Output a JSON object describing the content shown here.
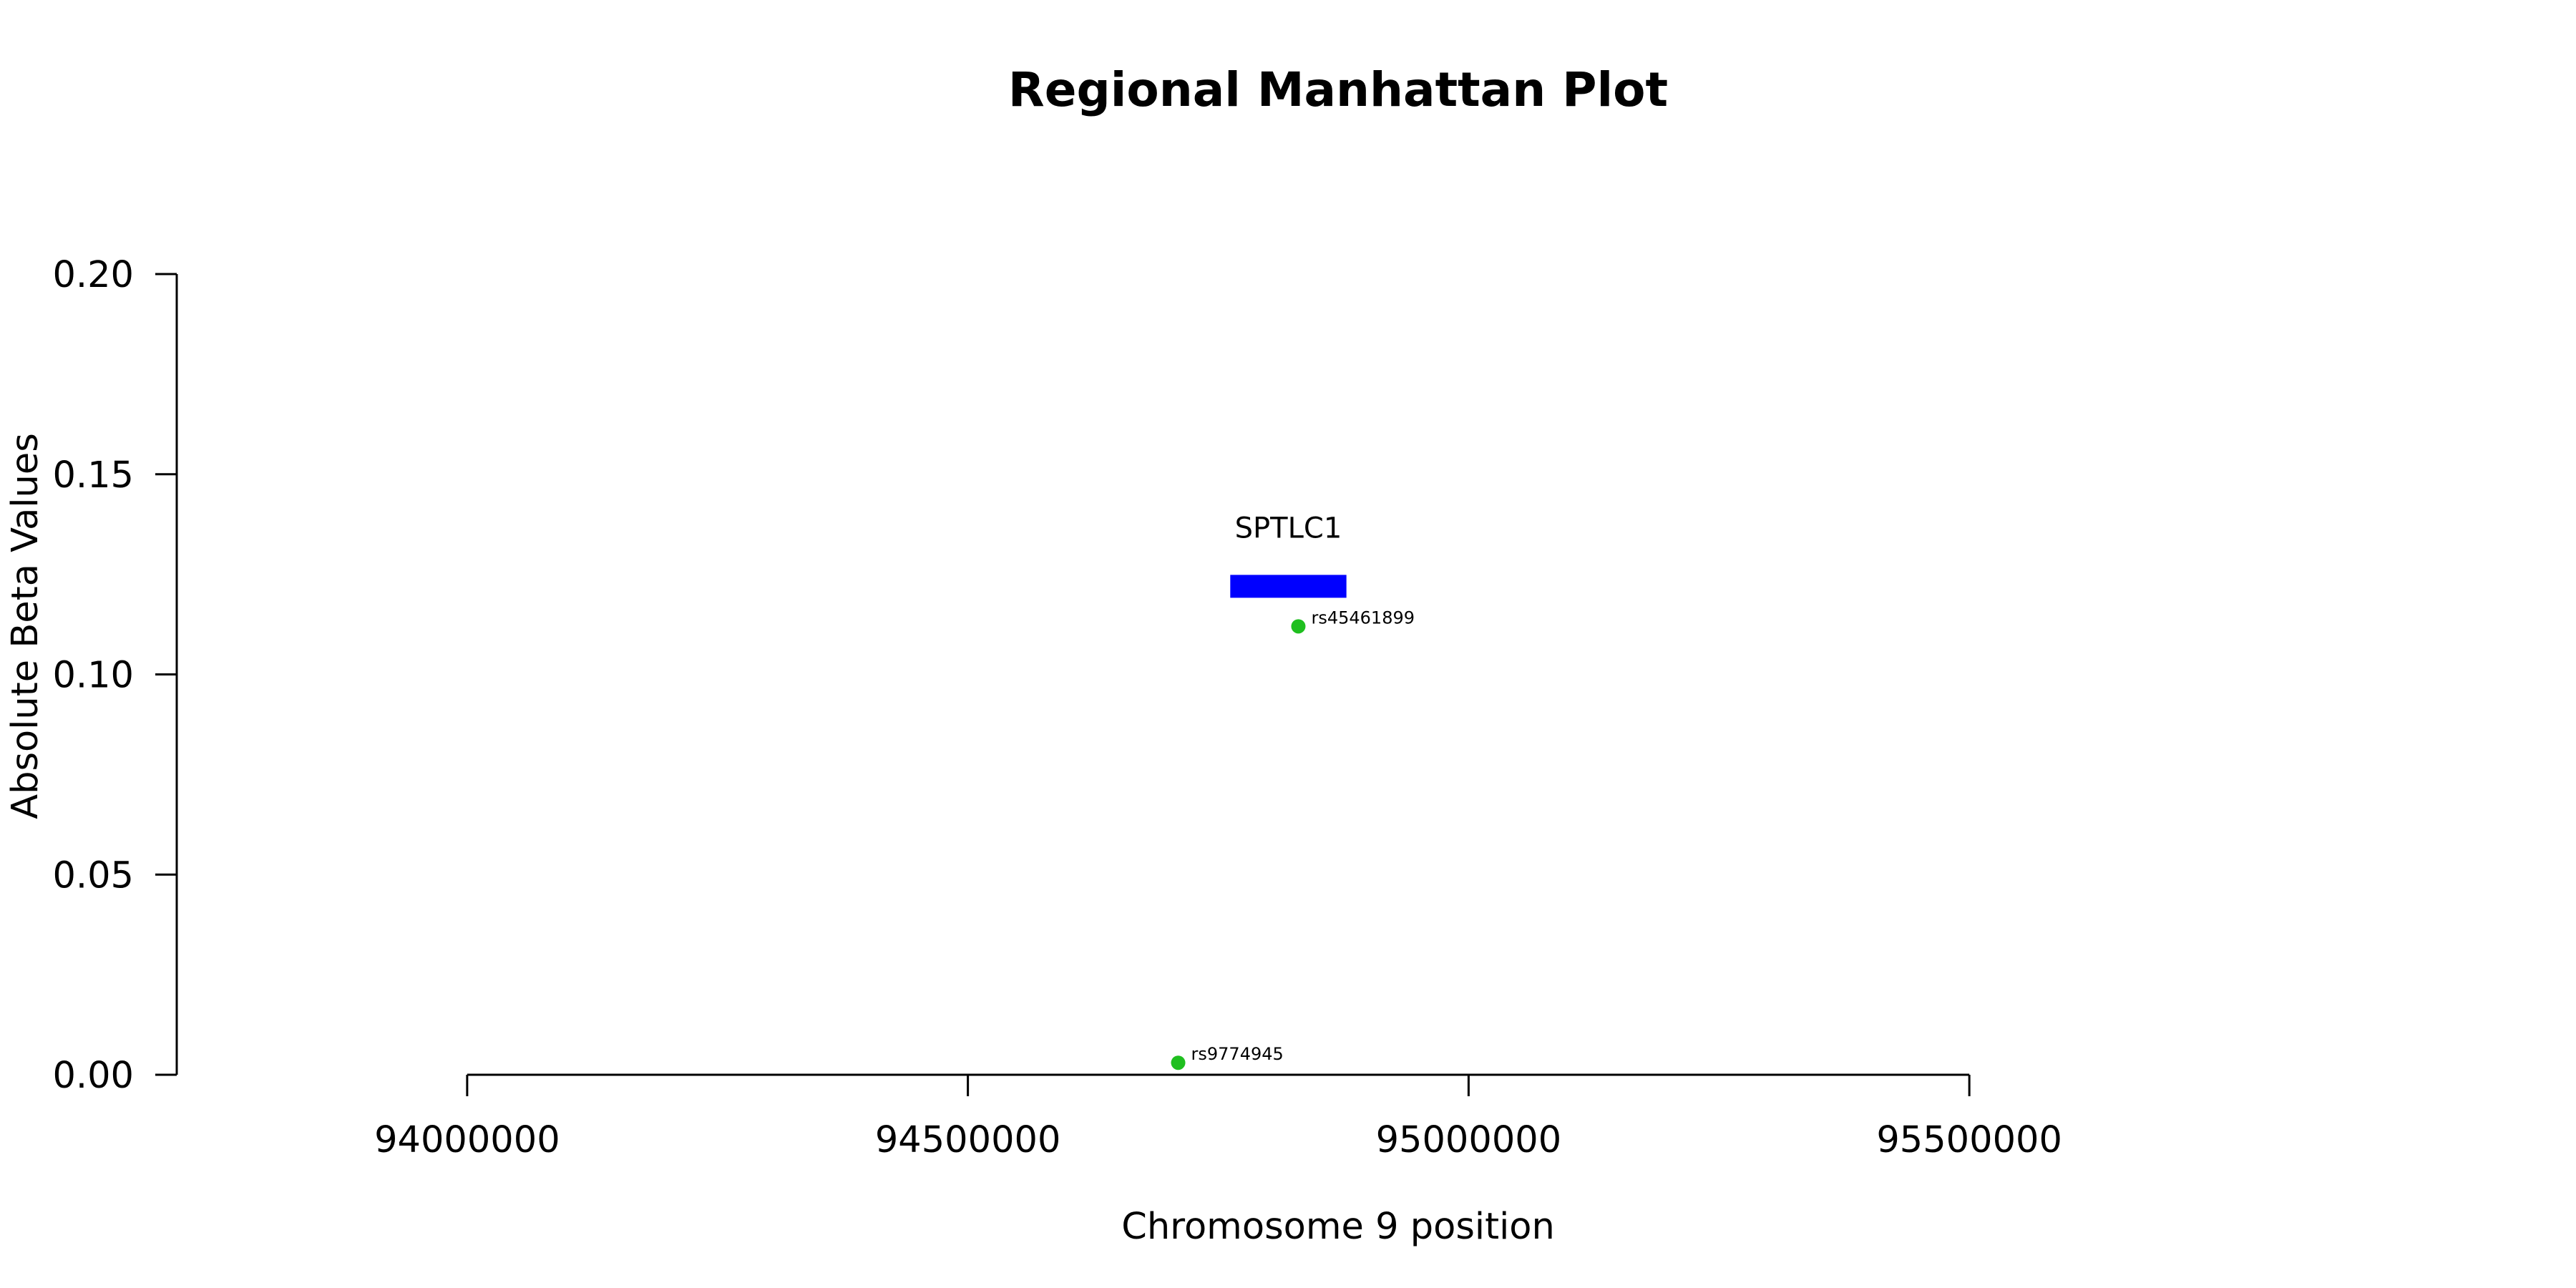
{
  "chart_data": {
    "type": "scatter",
    "title": "Regional Manhattan Plot",
    "xlabel": "Chromosome 9 position",
    "ylabel": "Absolute Beta Values",
    "xlim": [
      93710000,
      95830000
    ],
    "ylim": [
      0,
      0.2
    ],
    "x_ticks": [
      94000000,
      94500000,
      95000000,
      95500000
    ],
    "x_tick_labels": [
      "94000000",
      "94500000",
      "95000000",
      "95500000"
    ],
    "y_ticks": [
      0,
      0.05,
      0.1,
      0.15,
      0.2
    ],
    "y_tick_labels": [
      "0.00",
      "0.05",
      "0.10",
      "0.15",
      "0.20"
    ],
    "grid": false,
    "point_color": "#1fbf1f",
    "points": [
      {
        "label": "rs45461899",
        "x": 94830000,
        "y": 0.112
      },
      {
        "label": "rs9774945",
        "x": 94710000,
        "y": 0.003
      }
    ],
    "genes": [
      {
        "name": "SPTLC1",
        "start": 94762000,
        "end": 94878000,
        "y": 0.122,
        "color": "#0000ff"
      }
    ]
  }
}
